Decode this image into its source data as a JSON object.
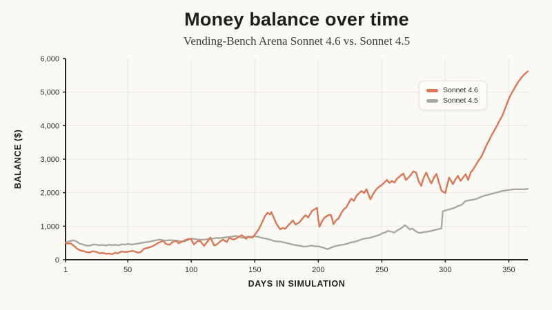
{
  "header": {
    "title": "Money balance over time",
    "subtitle": "Vending-Bench Arena Sonnet 4.6 vs. Sonnet 4.5"
  },
  "legend": {
    "items": [
      {
        "label": "Sonnet 4.6",
        "color": "#D97757"
      },
      {
        "label": "Sonnet 4.5",
        "color": "#A9A89F"
      }
    ]
  },
  "colors": {
    "background": "#FAF9F4",
    "grid": "#ECEAE3",
    "axis": "#23221F",
    "title_text": "#1F1E1C",
    "subtitle_text": "#3C3B37"
  },
  "chart_data": {
    "type": "line",
    "title": "Money balance over time",
    "subtitle": "Vending-Bench Arena Sonnet 4.6 vs. Sonnet 4.5",
    "xlabel": "DAYS IN SIMULATION",
    "ylabel": "BALANCE ($)",
    "xlim": [
      1,
      365
    ],
    "ylim": [
      0,
      6000
    ],
    "grid": true,
    "legend_position": "upper-right-inside",
    "x_ticks": [
      1,
      50,
      100,
      150,
      200,
      250,
      300,
      350
    ],
    "x_tick_labels": [
      "1",
      "50",
      "100",
      "150",
      "200",
      "250",
      "300",
      "350"
    ],
    "y_ticks": [
      0,
      1000,
      2000,
      3000,
      4000,
      5000,
      6000
    ],
    "y_tick_labels": [
      "0",
      "1,000",
      "2,000",
      "3,000",
      "4,000",
      "5,000",
      "6,000"
    ],
    "series": [
      {
        "name": "Sonnet 4.6",
        "color": "#D97757",
        "points": [
          [
            1,
            500
          ],
          [
            3,
            480
          ],
          [
            5,
            490
          ],
          [
            8,
            400
          ],
          [
            10,
            330
          ],
          [
            13,
            270
          ],
          [
            15,
            260
          ],
          [
            17,
            230
          ],
          [
            20,
            215
          ],
          [
            22,
            250
          ],
          [
            25,
            235
          ],
          [
            28,
            190
          ],
          [
            30,
            205
          ],
          [
            33,
            175
          ],
          [
            35,
            185
          ],
          [
            38,
            165
          ],
          [
            40,
            210
          ],
          [
            42,
            190
          ],
          [
            45,
            245
          ],
          [
            48,
            230
          ],
          [
            50,
            235
          ],
          [
            53,
            260
          ],
          [
            55,
            255
          ],
          [
            58,
            210
          ],
          [
            60,
            225
          ],
          [
            63,
            330
          ],
          [
            65,
            345
          ],
          [
            68,
            380
          ],
          [
            70,
            410
          ],
          [
            73,
            480
          ],
          [
            75,
            520
          ],
          [
            78,
            560
          ],
          [
            80,
            470
          ],
          [
            83,
            445
          ],
          [
            85,
            520
          ],
          [
            88,
            560
          ],
          [
            90,
            490
          ],
          [
            93,
            545
          ],
          [
            95,
            580
          ],
          [
            98,
            620
          ],
          [
            100,
            610
          ],
          [
            102,
            455
          ],
          [
            105,
            555
          ],
          [
            107,
            560
          ],
          [
            110,
            415
          ],
          [
            113,
            555
          ],
          [
            115,
            665
          ],
          [
            118,
            425
          ],
          [
            120,
            450
          ],
          [
            123,
            555
          ],
          [
            125,
            600
          ],
          [
            128,
            530
          ],
          [
            130,
            655
          ],
          [
            133,
            600
          ],
          [
            135,
            625
          ],
          [
            138,
            700
          ],
          [
            140,
            730
          ],
          [
            143,
            625
          ],
          [
            145,
            680
          ],
          [
            148,
            660
          ],
          [
            150,
            745
          ],
          [
            153,
            900
          ],
          [
            155,
            1050
          ],
          [
            158,
            1300
          ],
          [
            160,
            1400
          ],
          [
            162,
            1350
          ],
          [
            163,
            1420
          ],
          [
            165,
            1250
          ],
          [
            167,
            1080
          ],
          [
            170,
            905
          ],
          [
            172,
            950
          ],
          [
            174,
            920
          ],
          [
            176,
            1010
          ],
          [
            178,
            1090
          ],
          [
            180,
            1170
          ],
          [
            182,
            1050
          ],
          [
            185,
            1110
          ],
          [
            188,
            1250
          ],
          [
            190,
            1330
          ],
          [
            192,
            1260
          ],
          [
            195,
            1450
          ],
          [
            197,
            1500
          ],
          [
            199,
            1550
          ],
          [
            200,
            1200
          ],
          [
            201,
            980
          ],
          [
            203,
            1150
          ],
          [
            205,
            1260
          ],
          [
            208,
            1330
          ],
          [
            210,
            1340
          ],
          [
            212,
            1060
          ],
          [
            214,
            1180
          ],
          [
            216,
            1230
          ],
          [
            218,
            1380
          ],
          [
            220,
            1500
          ],
          [
            222,
            1560
          ],
          [
            224,
            1700
          ],
          [
            226,
            1820
          ],
          [
            228,
            1750
          ],
          [
            230,
            1900
          ],
          [
            232,
            1980
          ],
          [
            234,
            2050
          ],
          [
            236,
            1990
          ],
          [
            238,
            2100
          ],
          [
            241,
            1800
          ],
          [
            243,
            1950
          ],
          [
            245,
            2060
          ],
          [
            247,
            2150
          ],
          [
            250,
            2230
          ],
          [
            252,
            2300
          ],
          [
            254,
            2380
          ],
          [
            256,
            2290
          ],
          [
            258,
            2350
          ],
          [
            260,
            2300
          ],
          [
            262,
            2420
          ],
          [
            264,
            2480
          ],
          [
            267,
            2570
          ],
          [
            269,
            2380
          ],
          [
            271,
            2450
          ],
          [
            273,
            2540
          ],
          [
            275,
            2640
          ],
          [
            277,
            2600
          ],
          [
            279,
            2350
          ],
          [
            281,
            2200
          ],
          [
            283,
            2450
          ],
          [
            285,
            2600
          ],
          [
            287,
            2420
          ],
          [
            289,
            2270
          ],
          [
            291,
            2440
          ],
          [
            293,
            2560
          ],
          [
            295,
            2300
          ],
          [
            297,
            2060
          ],
          [
            300,
            1990
          ],
          [
            302,
            2300
          ],
          [
            303,
            2450
          ],
          [
            305,
            2320
          ],
          [
            306,
            2250
          ],
          [
            308,
            2400
          ],
          [
            310,
            2500
          ],
          [
            312,
            2350
          ],
          [
            314,
            2450
          ],
          [
            316,
            2550
          ],
          [
            318,
            2380
          ],
          [
            320,
            2600
          ],
          [
            322,
            2700
          ],
          [
            324,
            2820
          ],
          [
            326,
            2950
          ],
          [
            328,
            3050
          ],
          [
            330,
            3200
          ],
          [
            332,
            3380
          ],
          [
            335,
            3600
          ],
          [
            337,
            3750
          ],
          [
            340,
            3950
          ],
          [
            342,
            4100
          ],
          [
            345,
            4300
          ],
          [
            347,
            4500
          ],
          [
            350,
            4800
          ],
          [
            352,
            4950
          ],
          [
            355,
            5150
          ],
          [
            357,
            5280
          ],
          [
            360,
            5430
          ],
          [
            362,
            5520
          ],
          [
            365,
            5620
          ]
        ]
      },
      {
        "name": "Sonnet 4.5",
        "color": "#A9A89F",
        "points": [
          [
            1,
            510
          ],
          [
            3,
            540
          ],
          [
            5,
            560
          ],
          [
            7,
            580
          ],
          [
            10,
            540
          ],
          [
            12,
            480
          ],
          [
            15,
            450
          ],
          [
            17,
            425
          ],
          [
            20,
            420
          ],
          [
            23,
            455
          ],
          [
            25,
            450
          ],
          [
            28,
            430
          ],
          [
            30,
            440
          ],
          [
            33,
            425
          ],
          [
            35,
            445
          ],
          [
            38,
            435
          ],
          [
            40,
            445
          ],
          [
            43,
            430
          ],
          [
            45,
            460
          ],
          [
            48,
            450
          ],
          [
            50,
            470
          ],
          [
            53,
            455
          ],
          [
            55,
            465
          ],
          [
            58,
            480
          ],
          [
            60,
            495
          ],
          [
            63,
            515
          ],
          [
            65,
            525
          ],
          [
            68,
            545
          ],
          [
            70,
            560
          ],
          [
            73,
            585
          ],
          [
            75,
            600
          ],
          [
            78,
            580
          ],
          [
            80,
            570
          ],
          [
            83,
            585
          ],
          [
            85,
            580
          ],
          [
            88,
            570
          ],
          [
            90,
            560
          ],
          [
            93,
            540
          ],
          [
            95,
            550
          ],
          [
            98,
            600
          ],
          [
            100,
            630
          ],
          [
            103,
            615
          ],
          [
            105,
            605
          ],
          [
            108,
            595
          ],
          [
            110,
            600
          ],
          [
            113,
            615
          ],
          [
            115,
            620
          ],
          [
            118,
            640
          ],
          [
            120,
            650
          ],
          [
            123,
            645
          ],
          [
            125,
            660
          ],
          [
            128,
            670
          ],
          [
            130,
            680
          ],
          [
            133,
            695
          ],
          [
            135,
            710
          ],
          [
            138,
            680
          ],
          [
            140,
            655
          ],
          [
            143,
            675
          ],
          [
            145,
            690
          ],
          [
            148,
            685
          ],
          [
            150,
            700
          ],
          [
            153,
            680
          ],
          [
            155,
            655
          ],
          [
            158,
            635
          ],
          [
            160,
            620
          ],
          [
            163,
            585
          ],
          [
            165,
            560
          ],
          [
            168,
            545
          ],
          [
            170,
            540
          ],
          [
            173,
            515
          ],
          [
            175,
            500
          ],
          [
            178,
            470
          ],
          [
            180,
            450
          ],
          [
            183,
            430
          ],
          [
            185,
            420
          ],
          [
            188,
            395
          ],
          [
            190,
            390
          ],
          [
            193,
            410
          ],
          [
            195,
            420
          ],
          [
            197,
            400
          ],
          [
            200,
            400
          ],
          [
            203,
            370
          ],
          [
            205,
            345
          ],
          [
            207,
            315
          ],
          [
            210,
            360
          ],
          [
            213,
            400
          ],
          [
            215,
            420
          ],
          [
            218,
            440
          ],
          [
            220,
            450
          ],
          [
            223,
            480
          ],
          [
            225,
            510
          ],
          [
            228,
            530
          ],
          [
            230,
            550
          ],
          [
            233,
            590
          ],
          [
            235,
            620
          ],
          [
            238,
            640
          ],
          [
            240,
            650
          ],
          [
            243,
            680
          ],
          [
            245,
            700
          ],
          [
            248,
            740
          ],
          [
            250,
            780
          ],
          [
            253,
            820
          ],
          [
            255,
            860
          ],
          [
            258,
            830
          ],
          [
            260,
            810
          ],
          [
            262,
            870
          ],
          [
            264,
            910
          ],
          [
            266,
            960
          ],
          [
            268,
            1030
          ],
          [
            270,
            980
          ],
          [
            272,
            900
          ],
          [
            274,
            930
          ],
          [
            276,
            870
          ],
          [
            278,
            820
          ],
          [
            280,
            800
          ],
          [
            283,
            820
          ],
          [
            285,
            830
          ],
          [
            288,
            850
          ],
          [
            290,
            870
          ],
          [
            293,
            900
          ],
          [
            295,
            915
          ],
          [
            297,
            930
          ],
          [
            298,
            1440
          ],
          [
            300,
            1470
          ],
          [
            303,
            1500
          ],
          [
            305,
            1520
          ],
          [
            308,
            1560
          ],
          [
            310,
            1600
          ],
          [
            313,
            1640
          ],
          [
            315,
            1720
          ],
          [
            316,
            1750
          ],
          [
            318,
            1765
          ],
          [
            320,
            1780
          ],
          [
            323,
            1800
          ],
          [
            325,
            1820
          ],
          [
            328,
            1870
          ],
          [
            330,
            1900
          ],
          [
            333,
            1930
          ],
          [
            335,
            1950
          ],
          [
            338,
            1980
          ],
          [
            340,
            2000
          ],
          [
            343,
            2030
          ],
          [
            345,
            2050
          ],
          [
            348,
            2070
          ],
          [
            350,
            2080
          ],
          [
            353,
            2095
          ],
          [
            355,
            2100
          ],
          [
            358,
            2100
          ],
          [
            360,
            2100
          ],
          [
            363,
            2105
          ],
          [
            365,
            2110
          ]
        ]
      }
    ]
  }
}
